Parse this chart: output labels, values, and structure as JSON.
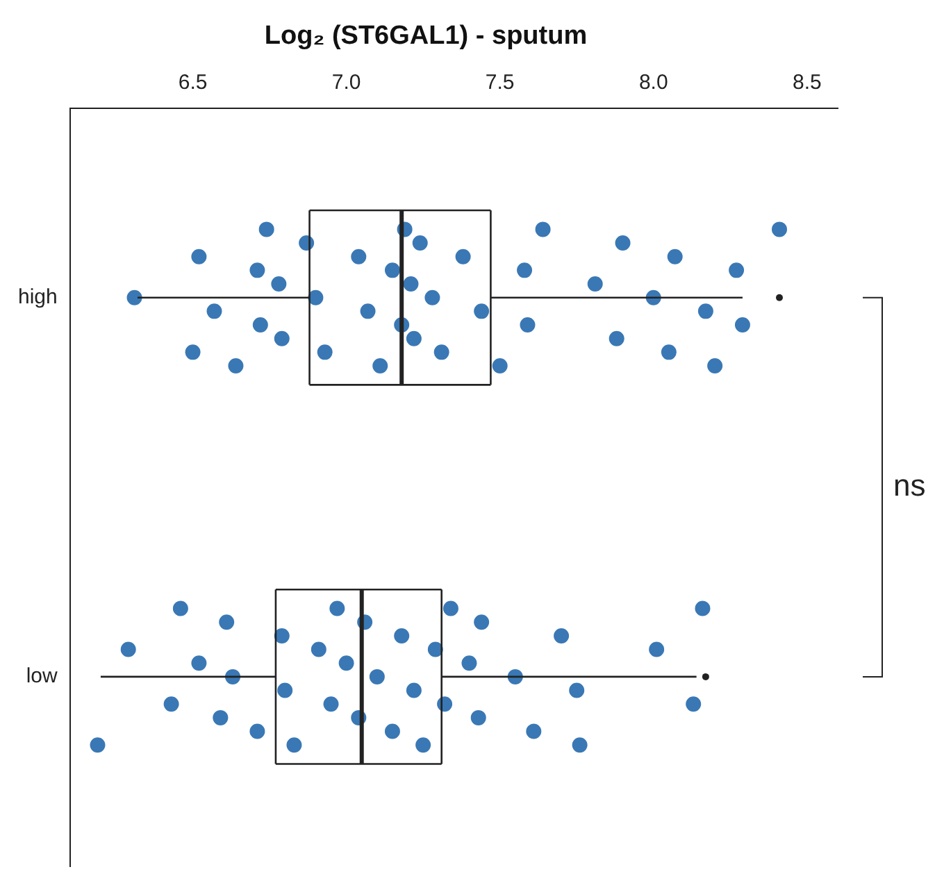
{
  "chart_data": {
    "type": "box",
    "orientation": "horizontal",
    "title": "Log₂ (ST6GAL1) - sputum",
    "categories": [
      "high",
      "low"
    ],
    "xlim": [
      6.1,
      8.6
    ],
    "xticks": [
      6.5,
      {
        "value": 7,
        "label": "7.0"
      },
      7.5,
      {
        "value": 8,
        "label": "8.0"
      },
      8.5
    ],
    "grid": false,
    "legend": false,
    "marker": "circle",
    "boxes": [
      {
        "low": 6.32,
        "q1": 6.88,
        "median": 7.18,
        "q3": 7.47,
        "high": 8.29,
        "outliers": [
          8.41
        ]
      },
      {
        "low": 6.2,
        "q1": 6.77,
        "median": 7.05,
        "q3": 7.31,
        "high": 8.14,
        "outliers": [
          8.17
        ]
      }
    ],
    "series": [
      {
        "type": "scatter",
        "color": "#3a78b5",
        "x": [
          "high",
          "high",
          "high",
          "high",
          "high",
          "high",
          "high",
          "high",
          "high",
          "high",
          "high",
          "high",
          "high",
          "high",
          "high",
          "high",
          "high",
          "high",
          "high",
          "high",
          "high",
          "high",
          "high",
          "high",
          "high",
          "high",
          "high",
          "high",
          "high",
          "high",
          "high",
          "high",
          "high",
          "high",
          "high",
          "high",
          "high",
          "high",
          "high",
          "high",
          "high"
        ],
        "values": [
          8.41,
          8.29,
          8.27,
          8.2,
          8.17,
          8.07,
          8.05,
          8.0,
          7.9,
          7.88,
          7.81,
          7.64,
          7.59,
          7.58,
          7.5,
          7.44,
          7.38,
          7.31,
          7.28,
          7.24,
          7.22,
          7.21,
          7.19,
          7.18,
          7.15,
          7.11,
          7.07,
          7.04,
          6.93,
          6.9,
          6.87,
          6.79,
          6.78,
          6.74,
          6.72,
          6.71,
          6.64,
          6.57,
          6.52,
          6.5,
          6.31
        ]
      },
      {
        "type": "scatter",
        "color": "#3a78b5",
        "x": [
          "low",
          "low",
          "low",
          "low",
          "low",
          "low",
          "low",
          "low",
          "low",
          "low",
          "low",
          "low",
          "low",
          "low",
          "low",
          "low",
          "low",
          "low",
          "low",
          "low",
          "low",
          "low",
          "low",
          "low",
          "low",
          "low",
          "low",
          "low",
          "low",
          "low",
          "low",
          "low",
          "low",
          "low",
          "low",
          "low",
          "low"
        ],
        "values": [
          8.16,
          8.13,
          8.01,
          7.76,
          7.75,
          7.7,
          7.61,
          7.55,
          7.44,
          7.43,
          7.4,
          7.34,
          7.32,
          7.29,
          7.25,
          7.22,
          7.18,
          7.15,
          7.1,
          7.06,
          7.04,
          7.0,
          6.97,
          6.95,
          6.91,
          6.83,
          6.8,
          6.79,
          6.71,
          6.63,
          6.61,
          6.59,
          6.52,
          6.46,
          6.43,
          6.29,
          6.19
        ]
      }
    ],
    "annotations": [
      "ns"
    ]
  }
}
